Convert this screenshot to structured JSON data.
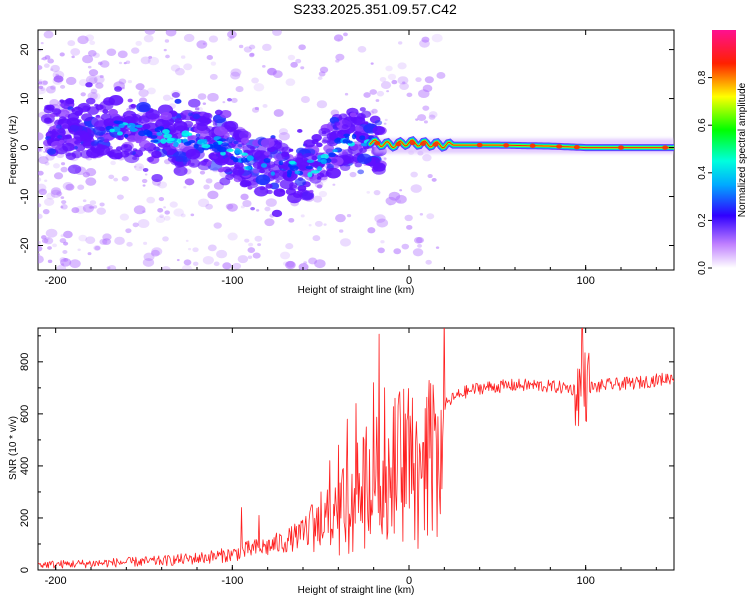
{
  "chart_data": [
    {
      "type": "heatmap",
      "title": "S233.2025.351.09.57.C42",
      "xlabel": "Height of straight line (km)",
      "ylabel": "Frequency (Hz)",
      "xlim": [
        -210,
        150
      ],
      "ylim": [
        -25,
        24
      ],
      "xticks": [
        -200,
        -100,
        0,
        100
      ],
      "xtick_labels": [
        "-200",
        "-100",
        "0",
        "100"
      ],
      "yticks": [
        -20,
        -10,
        0,
        10,
        20
      ],
      "ytick_labels": [
        "-20",
        "-10",
        "0",
        "10",
        "20"
      ],
      "ridge": {
        "x": [
          -170,
          -150,
          -130,
          -110,
          -100,
          -90,
          -80,
          -70,
          -60,
          -50,
          -40,
          -30,
          -20,
          -10,
          0,
          20,
          50,
          80,
          100,
          150
        ],
        "y": [
          4,
          3,
          2,
          1,
          -1,
          -3,
          -4,
          -4,
          -5,
          -3,
          1,
          2,
          1,
          0.5,
          1,
          0.5,
          0.5,
          0.3,
          0,
          0
        ]
      },
      "colorbar": {
        "label": "Normalized spectral amplitude",
        "range": [
          0,
          1
        ],
        "ticks": [
          0.0,
          0.2,
          0.4,
          0.6,
          0.8
        ],
        "tick_labels": [
          "0.0",
          "0.2",
          "0.4",
          "0.6",
          "0.8"
        ],
        "colors": [
          "#ffffff",
          "#a030ff",
          "#0000ff",
          "#00ffff",
          "#00ff00",
          "#ffff00",
          "#ff0000",
          "#ff1090"
        ]
      }
    },
    {
      "type": "line",
      "xlabel": "Height of straight line (km)",
      "ylabel": "SNR (10 * v/v)",
      "xlim": [
        -210,
        150
      ],
      "ylim": [
        0,
        930
      ],
      "xticks": [
        -200,
        -100,
        0,
        100
      ],
      "xtick_labels": [
        "-200",
        "-100",
        "0",
        "100"
      ],
      "yticks": [
        0,
        200,
        400,
        600,
        800
      ],
      "ytick_labels": [
        "0",
        "200",
        "400",
        "600",
        "800"
      ],
      "color": "#ff2020",
      "series": [
        {
          "name": "SNR",
          "x": [
            -210,
            -180,
            -160,
            -140,
            -120,
            -100,
            -90,
            -80,
            -70,
            -60,
            -50,
            -45,
            -40,
            -35,
            -30,
            -25,
            -20,
            -15,
            -10,
            -5,
            0,
            5,
            10,
            15,
            20,
            25,
            30,
            40,
            50,
            60,
            70,
            80,
            90,
            95,
            98,
            100,
            105,
            110,
            120,
            130,
            140,
            150
          ],
          "y": [
            20,
            25,
            30,
            35,
            45,
            60,
            80,
            90,
            110,
            140,
            180,
            200,
            230,
            260,
            300,
            330,
            360,
            390,
            410,
            430,
            460,
            500,
            540,
            590,
            630,
            660,
            680,
            700,
            705,
            710,
            710,
            705,
            700,
            690,
            700,
            710,
            700,
            710,
            715,
            720,
            730,
            740
          ]
        }
      ],
      "spikes": {
        "x": [
          -95,
          -85,
          -55,
          -50,
          -45,
          -40,
          -35,
          -30,
          -27,
          -24,
          -20,
          -17,
          -14,
          -11,
          -8,
          -5,
          -2,
          1,
          4,
          8,
          12,
          15,
          98
        ],
        "y": [
          240,
          210,
          250,
          300,
          420,
          480,
          580,
          640,
          320,
          550,
          720,
          906,
          700,
          400,
          660,
          560,
          600,
          520,
          570,
          490,
          430,
          600,
          930
        ]
      }
    }
  ]
}
